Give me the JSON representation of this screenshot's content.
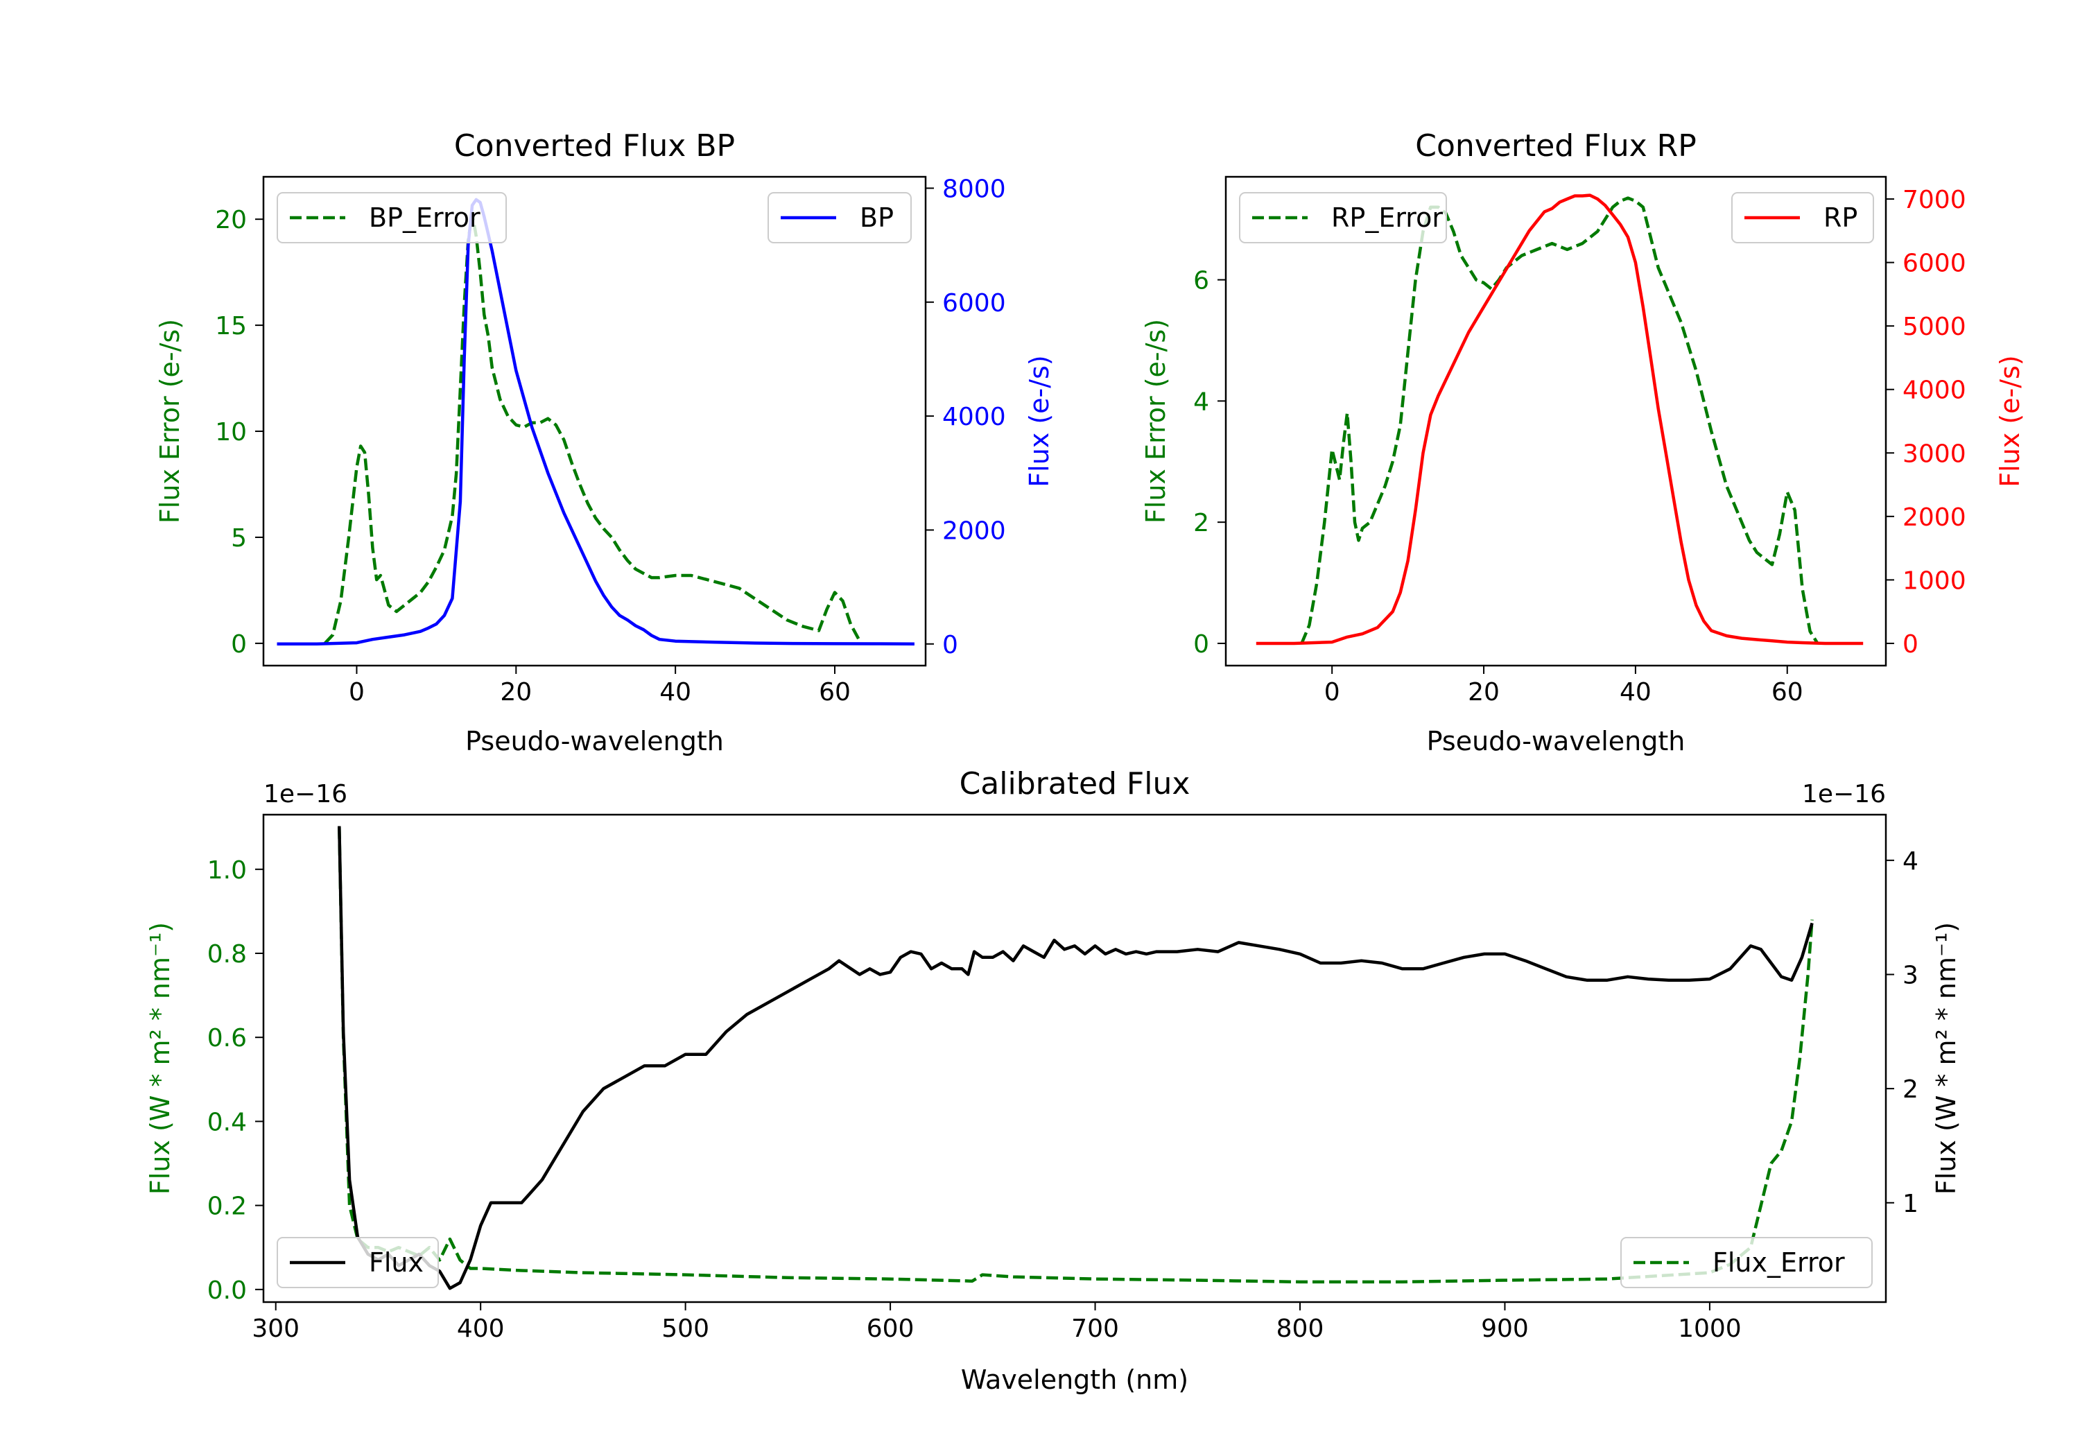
{
  "colors": {
    "green": "#007a00",
    "blue": "#0000ff",
    "red": "#ff0000",
    "black": "#000000"
  },
  "chart_data": [
    {
      "id": "bp",
      "type": "line",
      "title": "Converted Flux BP",
      "xlabel": "Pseudo-wavelength",
      "ylabel_left": "Flux Error (e-/s)",
      "ylabel_right": "Flux (e-/s)",
      "xlim": [
        -11.7,
        71.4
      ],
      "ylim_left": [
        -1.05,
        22.0
      ],
      "ylim_right": [
        -380,
        8200
      ],
      "xticks": [
        0,
        20,
        40,
        60
      ],
      "xtick_labels": [
        "0",
        "20",
        "40",
        "60"
      ],
      "yticks_left": [
        0,
        5,
        10,
        15,
        20
      ],
      "yticks_left_labels": [
        "0",
        "5",
        "10",
        "15",
        "20"
      ],
      "yticks_right": [
        0,
        2000,
        4000,
        6000,
        8000
      ],
      "yticks_right_labels": [
        "0",
        "2000",
        "4000",
        "6000",
        "8000"
      ],
      "legend_left": "BP_Error",
      "legend_right": "BP",
      "series": [
        {
          "name": "BP_Error",
          "axis": "left",
          "style": "dashed",
          "color": "#007a00",
          "x": [
            -4,
            -3,
            -2,
            -1,
            0,
            0.5,
            1,
            1.5,
            2,
            2.5,
            3,
            3.5,
            4,
            5,
            6,
            7,
            8,
            9,
            10,
            11,
            12,
            12.5,
            13,
            13.5,
            14,
            14.5,
            15,
            15.5,
            16,
            16.5,
            17,
            18,
            19,
            20,
            21,
            22,
            23,
            24,
            25,
            26,
            27,
            28,
            29,
            30,
            31,
            32,
            33,
            34,
            35,
            36,
            37,
            38,
            39,
            40,
            42,
            44,
            46,
            48,
            50,
            52,
            54,
            56,
            58,
            59,
            60,
            61,
            62,
            63
          ],
          "y": [
            0,
            0.4,
            2,
            5,
            8.3,
            9.3,
            9.0,
            7,
            4.5,
            3,
            3.2,
            2.5,
            1.8,
            1.5,
            1.8,
            2.1,
            2.4,
            2.9,
            3.6,
            4.4,
            6.0,
            8.0,
            12,
            16,
            19,
            20.3,
            19.2,
            17.5,
            15.5,
            14.5,
            13.0,
            11.5,
            10.7,
            10.3,
            10.2,
            10.4,
            10.4,
            10.6,
            10.3,
            9.6,
            8.5,
            7.5,
            6.6,
            5.9,
            5.4,
            5.0,
            4.4,
            3.9,
            3.5,
            3.3,
            3.1,
            3.1,
            3.15,
            3.2,
            3.2,
            3.0,
            2.8,
            2.6,
            2.1,
            1.6,
            1.1,
            0.8,
            0.6,
            1.6,
            2.4,
            2.0,
            0.9,
            0.2
          ]
        },
        {
          "name": "BP",
          "axis": "right",
          "style": "solid",
          "color": "#0000ff",
          "x": [
            -10,
            -5,
            0,
            2,
            4,
            6,
            8,
            9,
            10,
            11,
            12,
            13,
            13.5,
            14,
            14.5,
            15,
            15.5,
            16,
            16.5,
            17,
            18,
            19,
            20,
            22,
            24,
            26,
            28,
            30,
            31,
            32,
            33,
            34,
            35,
            36,
            37,
            38,
            40,
            45,
            50,
            55,
            60,
            65,
            70
          ],
          "y": [
            0,
            0,
            20,
            80,
            120,
            160,
            220,
            280,
            350,
            500,
            800,
            2500,
            5000,
            7000,
            7700,
            7800,
            7750,
            7500,
            7200,
            6900,
            6200,
            5500,
            4800,
            3800,
            3000,
            2300,
            1700,
            1100,
            850,
            650,
            500,
            420,
            320,
            250,
            150,
            80,
            50,
            30,
            15,
            8,
            5,
            3,
            0
          ]
        }
      ]
    },
    {
      "id": "rp",
      "type": "line",
      "title": "Converted Flux RP",
      "xlabel": "Pseudo-wavelength",
      "ylabel_left": "Flux Error (e-/s)",
      "ylabel_right": "Flux (e-/s)",
      "xlim": [
        -14,
        73
      ],
      "ylim_left": [
        -0.3667,
        7.7
      ],
      "ylim_right": [
        -350,
        7350
      ],
      "xticks": [
        0,
        20,
        40,
        60
      ],
      "xtick_labels": [
        "0",
        "20",
        "40",
        "60"
      ],
      "yticks_left": [
        0,
        2,
        4,
        6
      ],
      "yticks_left_labels": [
        "0",
        "2",
        "4",
        "6"
      ],
      "yticks_right": [
        0,
        1000,
        2000,
        3000,
        4000,
        5000,
        6000,
        7000
      ],
      "yticks_right_labels": [
        "0",
        "1000",
        "2000",
        "3000",
        "4000",
        "5000",
        "6000",
        "7000"
      ],
      "legend_left": "RP_Error",
      "legend_right": "RP",
      "series": [
        {
          "name": "RP_Error",
          "axis": "left",
          "style": "dashed",
          "color": "#007a00",
          "x": [
            -4,
            -3,
            -2,
            -1,
            0,
            1,
            1.5,
            2,
            2.5,
            3,
            3.5,
            4,
            5,
            6,
            7,
            8,
            9,
            10,
            11,
            12,
            13,
            14,
            15,
            16,
            17,
            18,
            19,
            20,
            21,
            22,
            23,
            24,
            25,
            27,
            29,
            31,
            33,
            35,
            37,
            38,
            39,
            40,
            41,
            42,
            43,
            44,
            46,
            48,
            50,
            52,
            54,
            55,
            56,
            57,
            58,
            59,
            60,
            61,
            62,
            63,
            64
          ],
          "y": [
            0,
            0.3,
            1.0,
            2.0,
            3.2,
            2.7,
            3.3,
            3.8,
            3.0,
            2.0,
            1.7,
            1.9,
            2.0,
            2.3,
            2.6,
            3.0,
            3.6,
            4.8,
            6.0,
            6.8,
            7.2,
            7.2,
            7.1,
            6.8,
            6.4,
            6.2,
            6.0,
            5.95,
            5.85,
            6.0,
            6.2,
            6.3,
            6.4,
            6.5,
            6.6,
            6.5,
            6.6,
            6.8,
            7.2,
            7.3,
            7.35,
            7.3,
            7.2,
            6.7,
            6.2,
            5.9,
            5.3,
            4.5,
            3.5,
            2.6,
            2.0,
            1.7,
            1.5,
            1.4,
            1.3,
            1.8,
            2.5,
            2.2,
            0.9,
            0.2,
            0
          ]
        },
        {
          "name": "RP",
          "axis": "right",
          "style": "solid",
          "color": "#ff0000",
          "x": [
            -10,
            -5,
            0,
            2,
            4,
            6,
            8,
            9,
            10,
            11,
            12,
            13,
            14,
            16,
            18,
            20,
            22,
            24,
            26,
            28,
            29,
            30,
            31,
            32,
            33,
            34,
            35,
            36,
            37,
            38,
            39,
            40,
            41,
            42,
            43,
            44,
            45,
            46,
            47,
            48,
            49,
            50,
            52,
            54,
            56,
            58,
            60,
            62,
            65,
            70
          ],
          "y": [
            0,
            0,
            20,
            100,
            150,
            250,
            500,
            800,
            1300,
            2100,
            3000,
            3600,
            3900,
            4400,
            4900,
            5300,
            5700,
            6100,
            6500,
            6800,
            6850,
            6950,
            7000,
            7050,
            7050,
            7060,
            7000,
            6900,
            6750,
            6600,
            6400,
            6000,
            5300,
            4500,
            3700,
            3000,
            2300,
            1600,
            1000,
            600,
            350,
            200,
            120,
            80,
            60,
            40,
            20,
            10,
            0,
            0
          ]
        }
      ]
    },
    {
      "id": "calibrated",
      "type": "line",
      "title": "Calibrated Flux",
      "xlabel": "Wavelength (nm)",
      "ylabel_left": "Flux (W * m² * nm⁻¹)",
      "ylabel_right": "Flux (W * m² * nm⁻¹)",
      "offset_left": "1e−16",
      "offset_right": "1e−16",
      "xlim": [
        294,
        1086
      ],
      "ylim_left": [
        -0.03,
        1.13
      ],
      "ylim_right": [
        0.13,
        4.4
      ],
      "xticks": [
        300,
        400,
        500,
        600,
        700,
        800,
        900,
        1000
      ],
      "xtick_labels": [
        "300",
        "400",
        "500",
        "600",
        "700",
        "800",
        "900",
        "1000"
      ],
      "yticks_left": [
        0.0,
        0.2,
        0.4,
        0.6,
        0.8,
        1.0
      ],
      "yticks_left_labels": [
        "0.0",
        "0.2",
        "0.4",
        "0.6",
        "0.8",
        "1.0"
      ],
      "yticks_right": [
        1,
        2,
        3,
        4
      ],
      "yticks_right_labels": [
        "1",
        "2",
        "3",
        "4"
      ],
      "legend_left": "Flux",
      "legend_right": "Flux_Error",
      "series": [
        {
          "name": "Flux_Error",
          "axis": "left",
          "style": "dashed",
          "color": "#007a00",
          "x": [
            331,
            333,
            336,
            340,
            345,
            350,
            355,
            360,
            365,
            370,
            375,
            380,
            385,
            390,
            395,
            400,
            420,
            450,
            500,
            550,
            600,
            640,
            645,
            660,
            700,
            750,
            800,
            850,
            900,
            950,
            1000,
            1010,
            1020,
            1025,
            1030,
            1035,
            1040,
            1044,
            1048,
            1050
          ],
          "y": [
            1.1,
            0.6,
            0.2,
            0.12,
            0.1,
            0.1,
            0.09,
            0.1,
            0.09,
            0.08,
            0.1,
            0.07,
            0.12,
            0.07,
            0.05,
            0.05,
            0.045,
            0.04,
            0.035,
            0.028,
            0.025,
            0.02,
            0.035,
            0.03,
            0.025,
            0.022,
            0.018,
            0.018,
            0.022,
            0.025,
            0.04,
            0.06,
            0.1,
            0.2,
            0.3,
            0.33,
            0.4,
            0.55,
            0.75,
            0.88
          ]
        },
        {
          "name": "Flux",
          "axis": "right",
          "style": "solid",
          "color": "#000000",
          "x": [
            331,
            333,
            336,
            340,
            345,
            350,
            355,
            360,
            365,
            370,
            375,
            380,
            385,
            390,
            395,
            400,
            405,
            410,
            420,
            430,
            440,
            450,
            460,
            470,
            480,
            490,
            500,
            510,
            520,
            530,
            540,
            550,
            560,
            570,
            575,
            580,
            585,
            590,
            595,
            600,
            605,
            610,
            615,
            620,
            625,
            630,
            635,
            638,
            641,
            645,
            650,
            655,
            660,
            665,
            670,
            675,
            680,
            685,
            690,
            695,
            700,
            705,
            710,
            715,
            720,
            725,
            730,
            740,
            750,
            760,
            770,
            780,
            790,
            800,
            810,
            820,
            830,
            840,
            850,
            860,
            870,
            880,
            890,
            900,
            910,
            920,
            930,
            940,
            950,
            960,
            970,
            980,
            990,
            1000,
            1010,
            1020,
            1025,
            1030,
            1035,
            1040,
            1045,
            1050
          ],
          "y": [
            4.3,
            2.5,
            1.2,
            0.7,
            0.55,
            0.5,
            0.55,
            0.45,
            0.5,
            0.55,
            0.45,
            0.4,
            0.25,
            0.3,
            0.5,
            0.8,
            1.0,
            1.0,
            1.0,
            1.2,
            1.5,
            1.8,
            2.0,
            2.1,
            2.2,
            2.2,
            2.3,
            2.3,
            2.5,
            2.65,
            2.75,
            2.85,
            2.95,
            3.05,
            3.12,
            3.06,
            3.0,
            3.05,
            3.0,
            3.02,
            3.15,
            3.2,
            3.18,
            3.05,
            3.1,
            3.05,
            3.05,
            3.0,
            3.2,
            3.15,
            3.15,
            3.2,
            3.12,
            3.25,
            3.2,
            3.15,
            3.3,
            3.22,
            3.25,
            3.18,
            3.25,
            3.18,
            3.22,
            3.18,
            3.2,
            3.18,
            3.2,
            3.2,
            3.22,
            3.2,
            3.28,
            3.25,
            3.22,
            3.18,
            3.1,
            3.1,
            3.12,
            3.1,
            3.05,
            3.05,
            3.1,
            3.15,
            3.18,
            3.18,
            3.12,
            3.05,
            2.98,
            2.95,
            2.95,
            2.98,
            2.96,
            2.95,
            2.95,
            2.96,
            3.05,
            3.25,
            3.22,
            3.1,
            2.98,
            2.95,
            3.15,
            3.45
          ]
        }
      ]
    }
  ]
}
